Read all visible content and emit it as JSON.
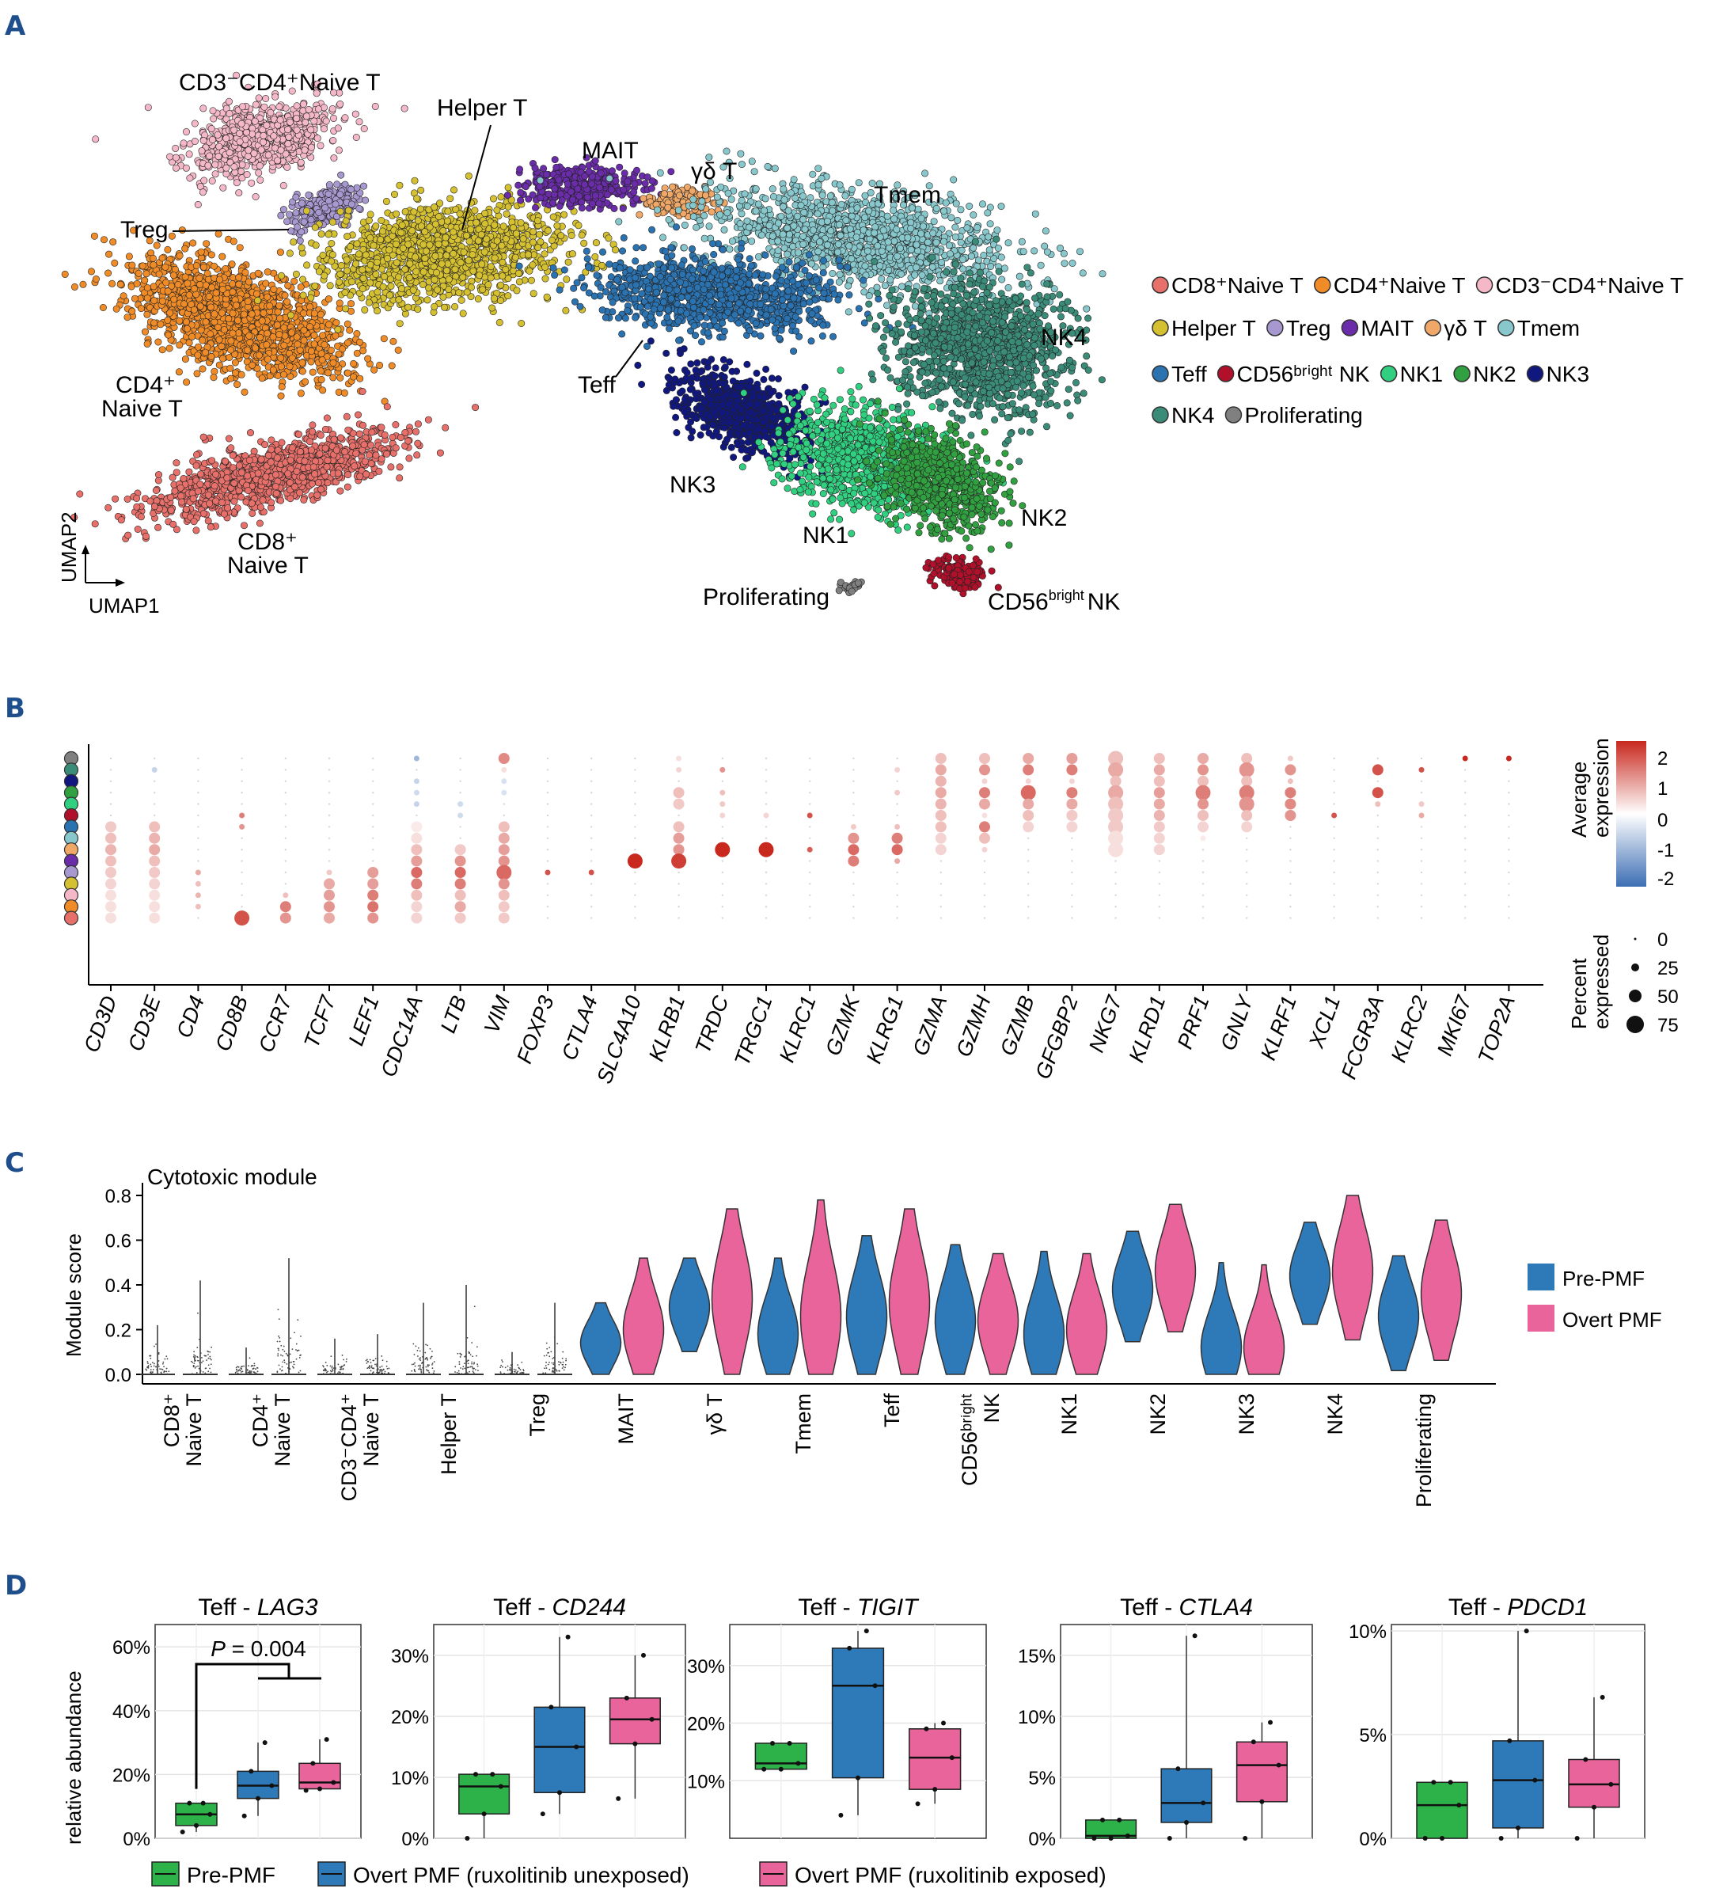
{
  "panels": {
    "a": "A",
    "b": "B",
    "c": "C",
    "d": "D"
  },
  "colors": {
    "CD8+Naive T": "#e8706a",
    "CD4+Naive T": "#f08c28",
    "CD3-CD4+Naive T": "#f4b8c8",
    "Helper T": "#d4c030",
    "Treg": "#a898d0",
    "MAIT": "#6a2ca8",
    "γδ T": "#f0a868",
    "Tmem": "#88c8cc",
    "Teff": "#2a72b0",
    "CD56bright NK": "#b0102a",
    "NK1": "#30d080",
    "NK2": "#30a040",
    "NK3": "#101880",
    "NK4": "#3a8c78",
    "Proliferating": "#808080",
    "pre_pmf": "#2e7ab8",
    "overt_pmf": "#e8649a",
    "d_pre": "#2db24a",
    "d_unexposed": "#2e7ab8",
    "d_exposed": "#e8649a"
  },
  "panel_a": {
    "axis_x": "UMAP1",
    "axis_y": "UMAP2",
    "clusters": [
      {
        "key": "cd3",
        "label_html": "CD3⁻CD4⁺Naive T"
      },
      {
        "key": "helper",
        "label": "Helper T"
      },
      {
        "key": "mait",
        "label": "MAIT"
      },
      {
        "key": "gd",
        "label": "γδ  T"
      },
      {
        "key": "tmem",
        "label": "Tmem"
      },
      {
        "key": "treg",
        "label": "Treg"
      },
      {
        "key": "nk4",
        "label": "NK4"
      },
      {
        "key": "teff",
        "label": "Teff"
      },
      {
        "key": "nk3",
        "label": "NK3"
      },
      {
        "key": "nk2",
        "label": "NK2"
      },
      {
        "key": "nk1",
        "label": "NK1"
      },
      {
        "key": "prolif",
        "label": "Proliferating"
      }
    ],
    "label_cd4": [
      "CD4⁺",
      "Naive T"
    ],
    "label_cd8": [
      "CD8⁺",
      "Naive T"
    ],
    "label_cd56": [
      "CD56",
      "bright",
      "NK"
    ],
    "legend": [
      [
        "CD8⁺Naive T",
        "CD4⁺Naive T",
        "CD3⁻CD4⁺Naive T"
      ],
      [
        "Helper T",
        "Treg",
        "MAIT",
        "γδ T",
        "Tmem"
      ],
      [
        "Teff",
        "CD56ᵇʳⁱᵍʰᵗ NK",
        "NK1",
        "NK2",
        "NK3"
      ],
      [
        "NK4",
        "Proliferating"
      ]
    ]
  },
  "chart_data": [
    {
      "type": "dotplot",
      "panel": "B",
      "genes": [
        "CD3D",
        "CD3E",
        "CD4",
        "CD8B",
        "CCR7",
        "TCF7",
        "LEF1",
        "CDC14A",
        "LTB",
        "VIM",
        "FOXP3",
        "CTLA4",
        "SLC4A10",
        "KLRB1",
        "TRDC",
        "TRGC1",
        "KLRC1",
        "GZMK",
        "KLRG1",
        "GZMA",
        "GZMH",
        "GZMB",
        "GFGBP2",
        "NKG7",
        "KLRD1",
        "PRF1",
        "GNLY",
        "KLRF1",
        "XCL1",
        "FCGR3A",
        "KLRC2",
        "MKI67",
        "TOP2A"
      ],
      "clusters_top_to_bottom": [
        "Proliferating",
        "NK4",
        "NK3",
        "NK2",
        "NK1",
        "CD56bright NK",
        "Teff",
        "Tmem",
        "γδ T",
        "MAIT",
        "Treg",
        "Helper T",
        "CD3-CD4+Naive T",
        "CD4+Naive T",
        "CD8+Naive T"
      ],
      "color_legend": {
        "title": [
          "Average",
          "expression"
        ],
        "ticks": [
          "2",
          "1",
          "0",
          "-1",
          "-2"
        ]
      },
      "size_legend": {
        "title": [
          "Percent",
          "expressed"
        ],
        "ticks": [
          "0",
          "25",
          "50",
          "75"
        ]
      }
    },
    {
      "type": "violin",
      "panel": "C",
      "title": "Cytotoxic module",
      "ylabel": "Module score",
      "ylim": [
        0,
        0.8
      ],
      "yticks": [
        "0.0",
        "0.2",
        "0.4",
        "0.6",
        "0.8"
      ],
      "legend": [
        "Pre-PMF",
        "Overt PMF"
      ],
      "categories": [
        [
          "CD8⁺",
          "Naive T"
        ],
        [
          "CD4⁺",
          "Naive T"
        ],
        [
          "CD3⁻CD4⁺",
          "Naive T"
        ],
        [
          "Helper T"
        ],
        [
          "Treg"
        ],
        [
          "MAIT"
        ],
        [
          "γδ T"
        ],
        [
          "Tmem"
        ],
        [
          "Teff"
        ],
        [
          "CD56ᵇʳⁱᵍʰᵗ",
          "NK"
        ],
        [
          "NK1"
        ],
        [
          "NK2"
        ],
        [
          "NK3"
        ],
        [
          "NK4"
        ],
        [
          "Proliferating"
        ]
      ],
      "series": [
        {
          "name": "Pre-PMF",
          "median": [
            0.0,
            0.0,
            0.0,
            0.0,
            0.0,
            0.14,
            0.3,
            0.18,
            0.26,
            0.24,
            0.18,
            0.38,
            0.12,
            0.44,
            0.26
          ],
          "max": [
            0.22,
            0.12,
            0.16,
            0.32,
            0.1,
            0.32,
            0.52,
            0.52,
            0.62,
            0.58,
            0.55,
            0.64,
            0.5,
            0.68,
            0.53
          ]
        },
        {
          "name": "Overt PMF",
          "median": [
            0.0,
            0.0,
            0.0,
            0.0,
            0.0,
            0.2,
            0.34,
            0.26,
            0.32,
            0.24,
            0.2,
            0.46,
            0.12,
            0.46,
            0.36
          ],
          "max": [
            0.42,
            0.52,
            0.18,
            0.4,
            0.32,
            0.52,
            0.74,
            0.78,
            0.74,
            0.54,
            0.54,
            0.76,
            0.49,
            0.8,
            0.69
          ]
        }
      ]
    },
    {
      "type": "box",
      "panel": "D",
      "ylabel": "relative abundance",
      "legend": [
        "Pre-PMF",
        "Overt PMF (ruxolitinib unexposed)",
        "Overt PMF (ruxolitinib exposed)"
      ],
      "charts": [
        {
          "title_prefix": "Teff - ",
          "gene": "LAG3",
          "ymax": 0.65,
          "yticks": [
            "0%",
            "20%",
            "40%",
            "60%"
          ],
          "ytick_values": [
            0,
            0.2,
            0.4,
            0.6
          ],
          "pvalue": "= 0.004",
          "boxes": [
            {
              "q1": 0.04,
              "med": 0.075,
              "q3": 0.11,
              "lo": 0.02,
              "hi": 0.11
            },
            {
              "q1": 0.125,
              "med": 0.165,
              "q3": 0.21,
              "lo": 0.07,
              "hi": 0.3
            },
            {
              "q1": 0.155,
              "med": 0.175,
              "q3": 0.235,
              "lo": 0.15,
              "hi": 0.31
            }
          ]
        },
        {
          "title_prefix": "Teff - ",
          "gene": "CD244",
          "ymax": 0.34,
          "yticks": [
            "0%",
            "10%",
            "20%",
            "30%"
          ],
          "ytick_values": [
            0,
            0.1,
            0.2,
            0.3
          ],
          "boxes": [
            {
              "q1": 0.04,
              "med": 0.085,
              "q3": 0.105,
              "lo": 0.0,
              "hi": 0.105
            },
            {
              "q1": 0.075,
              "med": 0.15,
              "q3": 0.215,
              "lo": 0.04,
              "hi": 0.33
            },
            {
              "q1": 0.155,
              "med": 0.195,
              "q3": 0.23,
              "lo": 0.065,
              "hi": 0.3
            }
          ]
        },
        {
          "title_prefix": "Teff - ",
          "gene": "TIGIT",
          "ymax": 0.36,
          "yticks": [
            "10%",
            "20%",
            "30%"
          ],
          "ytick_values": [
            0.1,
            0.2,
            0.3
          ],
          "boxes": [
            {
              "q1": 0.12,
              "med": 0.13,
              "q3": 0.165,
              "lo": 0.12,
              "hi": 0.165
            },
            {
              "q1": 0.105,
              "med": 0.265,
              "q3": 0.33,
              "lo": 0.04,
              "hi": 0.36
            },
            {
              "q1": 0.085,
              "med": 0.14,
              "q3": 0.19,
              "lo": 0.06,
              "hi": 0.2
            }
          ]
        },
        {
          "title_prefix": "Teff - ",
          "gene": "CTLA4",
          "ymax": 0.17,
          "yticks": [
            "0%",
            "5%",
            "10%",
            "15%"
          ],
          "ytick_values": [
            0,
            0.05,
            0.1,
            0.15
          ],
          "boxes": [
            {
              "q1": 0.0,
              "med": 0.002,
              "q3": 0.015,
              "lo": 0.0,
              "hi": 0.015
            },
            {
              "q1": 0.013,
              "med": 0.029,
              "q3": 0.057,
              "lo": 0.0,
              "hi": 0.166
            },
            {
              "q1": 0.03,
              "med": 0.06,
              "q3": 0.079,
              "lo": 0.0,
              "hi": 0.095
            }
          ]
        },
        {
          "title_prefix": "Teff - ",
          "gene": "PDCD1",
          "ymax": 0.1,
          "yticks": [
            "0%",
            "5%",
            "10%"
          ],
          "ytick_values": [
            0,
            0.05,
            0.1
          ],
          "boxes": [
            {
              "q1": 0.0,
              "med": 0.016,
              "q3": 0.027,
              "lo": 0.0,
              "hi": 0.027
            },
            {
              "q1": 0.005,
              "med": 0.028,
              "q3": 0.047,
              "lo": 0.0,
              "hi": 0.1
            },
            {
              "q1": 0.015,
              "med": 0.026,
              "q3": 0.038,
              "lo": 0.0,
              "hi": 0.068
            }
          ]
        }
      ]
    }
  ]
}
